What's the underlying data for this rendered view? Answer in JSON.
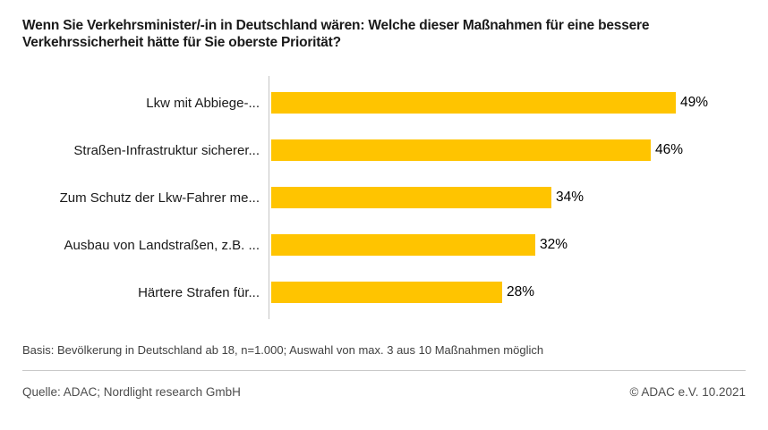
{
  "title": "Wenn Sie Verkehrsminister/-in in Deutschland wären: Welche dieser Maßnahmen für eine bessere Verkehrssicherheit hätte für Sie oberste Priorität?",
  "chart_data": {
    "type": "bar",
    "orientation": "horizontal",
    "title": "Wenn Sie Verkehrsminister/-in in Deutschland wären: Welche dieser Maßnahmen für eine bessere Verkehrssicherheit hätte für Sie oberste Priorität?",
    "categories": [
      "Lkw mit Abbiege-...",
      "Straßen-Infrastruktur sicherer...",
      "Zum Schutz der Lkw-Fahrer me...",
      "Ausbau von Landstraßen, z.B. ...",
      "Härtere Strafen für..."
    ],
    "values": [
      49,
      46,
      34,
      32,
      28
    ],
    "value_labels": [
      "49%",
      "46%",
      "34%",
      "32%",
      "28%"
    ],
    "unit": "%",
    "xlabel": "",
    "ylabel": "",
    "xlim": [
      0,
      55
    ],
    "grid": false,
    "legend": false,
    "bar_color": "#FFC400"
  },
  "footer": {
    "basis": "Basis: Bevölkerung in Deutschland ab 18, n=1.000; Auswahl von max. 3 aus 10 Maßnahmen möglich",
    "source": "Quelle: ADAC; Nordlight research GmbH",
    "copyright": "© ADAC e.V. 10.2021"
  },
  "colors": {
    "bar": "#FFC400",
    "title_text": "#1a1a1a",
    "axis_line": "#c4c4c4",
    "footer_text": "#4d4d4d",
    "divider": "#c9c9c9",
    "background": "#ffffff"
  }
}
